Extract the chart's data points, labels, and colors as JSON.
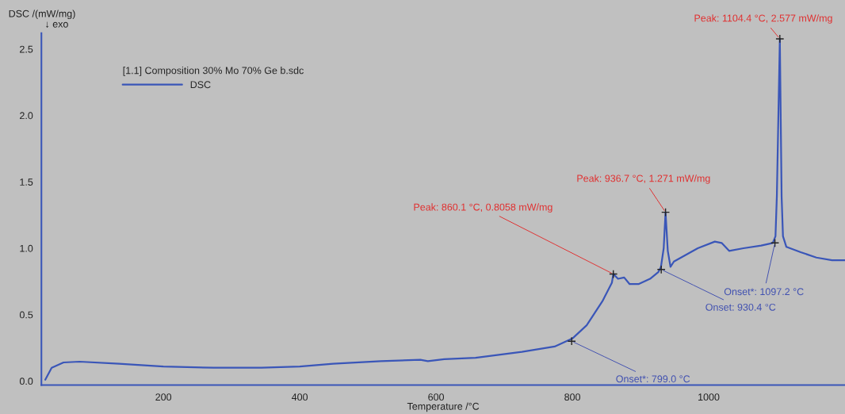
{
  "chart_data": {
    "type": "line",
    "xlabel": "Temperature /°C",
    "ylabel": "DSC /(mW/mg)",
    "legend_title": "[1.1] Composition 30% Mo 70% Ge b.sdc",
    "legend": "top left",
    "grid": false,
    "xlim": [
      21,
      1200
    ],
    "xticks": [
      200,
      400,
      600,
      800,
      1000
    ],
    "ylim": [
      -0.03,
      2.62
    ],
    "yticks": [
      {
        "value": 0,
        "label": "0.0"
      },
      0.5,
      {
        "value": 1,
        "label": "1.0"
      },
      1.5,
      {
        "value": 2,
        "label": "2.0"
      },
      2.5
    ],
    "series": [
      {
        "name": "DSC",
        "color": "#3a56b8",
        "x": [
          26.7,
          36,
          53.5,
          77,
          135,
          200,
          274,
          344,
          400,
          449,
          519,
          577,
          588,
          612,
          658,
          726,
          774,
          800,
          821,
          844,
          858,
          860.1,
          867,
          876,
          884,
          897,
          914,
          926,
          930,
          934,
          936.7,
          940,
          944,
          949,
          984,
          1009,
          1019,
          1030,
          1051,
          1077,
          1094,
          1098,
          1100,
          1104.4,
          1107,
          1109,
          1114,
          1135,
          1158,
          1181,
          1200
        ],
        "values": [
          0.01,
          0.1,
          0.14,
          0.146,
          0.13,
          0.11,
          0.1,
          0.1,
          0.11,
          0.13,
          0.15,
          0.16,
          0.15,
          0.165,
          0.175,
          0.22,
          0.26,
          0.32,
          0.42,
          0.6,
          0.74,
          0.8058,
          0.77,
          0.78,
          0.73,
          0.73,
          0.77,
          0.82,
          0.86,
          1.0,
          1.271,
          0.98,
          0.86,
          0.9,
          1.0,
          1.05,
          1.04,
          0.98,
          1.0,
          1.02,
          1.04,
          1.09,
          1.39,
          2.577,
          1.39,
          1.09,
          1.01,
          0.97,
          0.93,
          0.91,
          0.91
        ]
      }
    ],
    "annotations": [
      "↓ exo",
      {
        "text": "Peak: 860.1 °C, 0.8058 mW/mg",
        "x": 860.1,
        "y": 0.8058
      },
      {
        "text": "Peak: 936.7 °C, 1.271 mW/mg",
        "x": 936.7,
        "y": 1.271
      },
      {
        "text": "Peak: 1104.4 °C, 2.577 mW/mg",
        "x": 1104.4,
        "y": 2.577
      },
      {
        "text": "Onset*: 799.0 °C",
        "x": 799.0,
        "y": 0.3
      },
      {
        "text": "Onset: 930.4 °C",
        "x": 930.4,
        "y": 0.84
      },
      {
        "text": "Onset*: 1097.2 °C",
        "x": 1097.2,
        "y": 1.04
      }
    ]
  }
}
